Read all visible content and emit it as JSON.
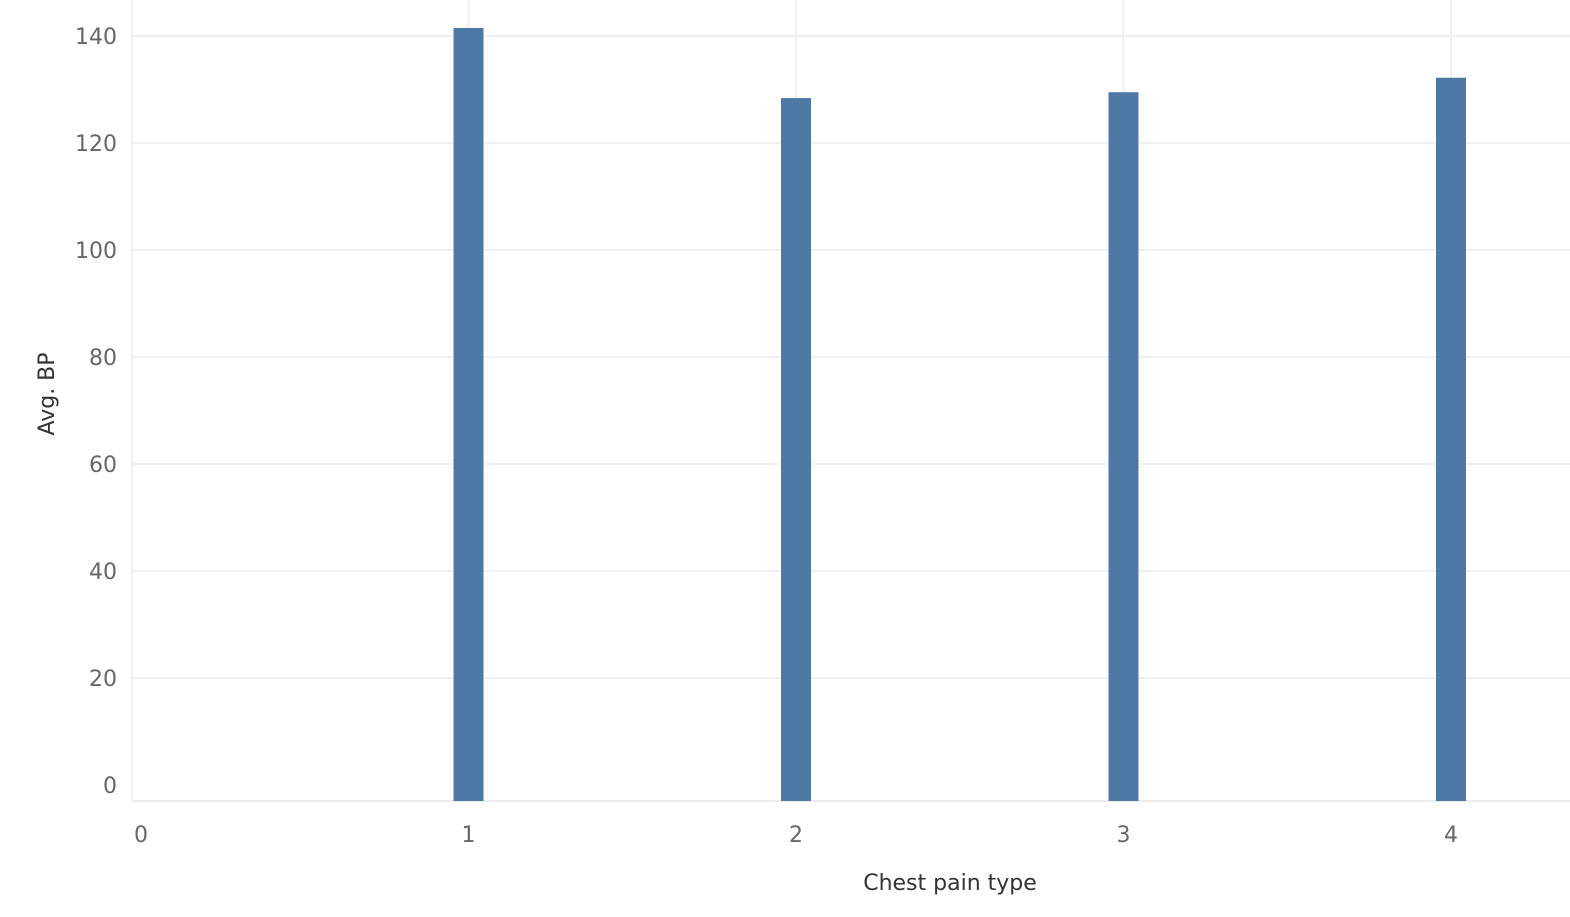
{
  "chart_data": {
    "type": "bar",
    "x": [
      1,
      2,
      3,
      4
    ],
    "values": [
      141.5,
      128.4,
      129.5,
      132.2
    ],
    "xlabel": "Chest pain type",
    "ylabel": "Avg. BP",
    "xlim": [
      0,
      4.4
    ],
    "ylim": [
      -3,
      143
    ],
    "xticks": [
      0,
      1,
      2,
      3,
      4
    ],
    "yticks": [
      0,
      20,
      40,
      60,
      80,
      100,
      120,
      140
    ],
    "grid": true,
    "legend": "none",
    "bar_color": "#4e79a7",
    "grid_color": "#ececec"
  }
}
